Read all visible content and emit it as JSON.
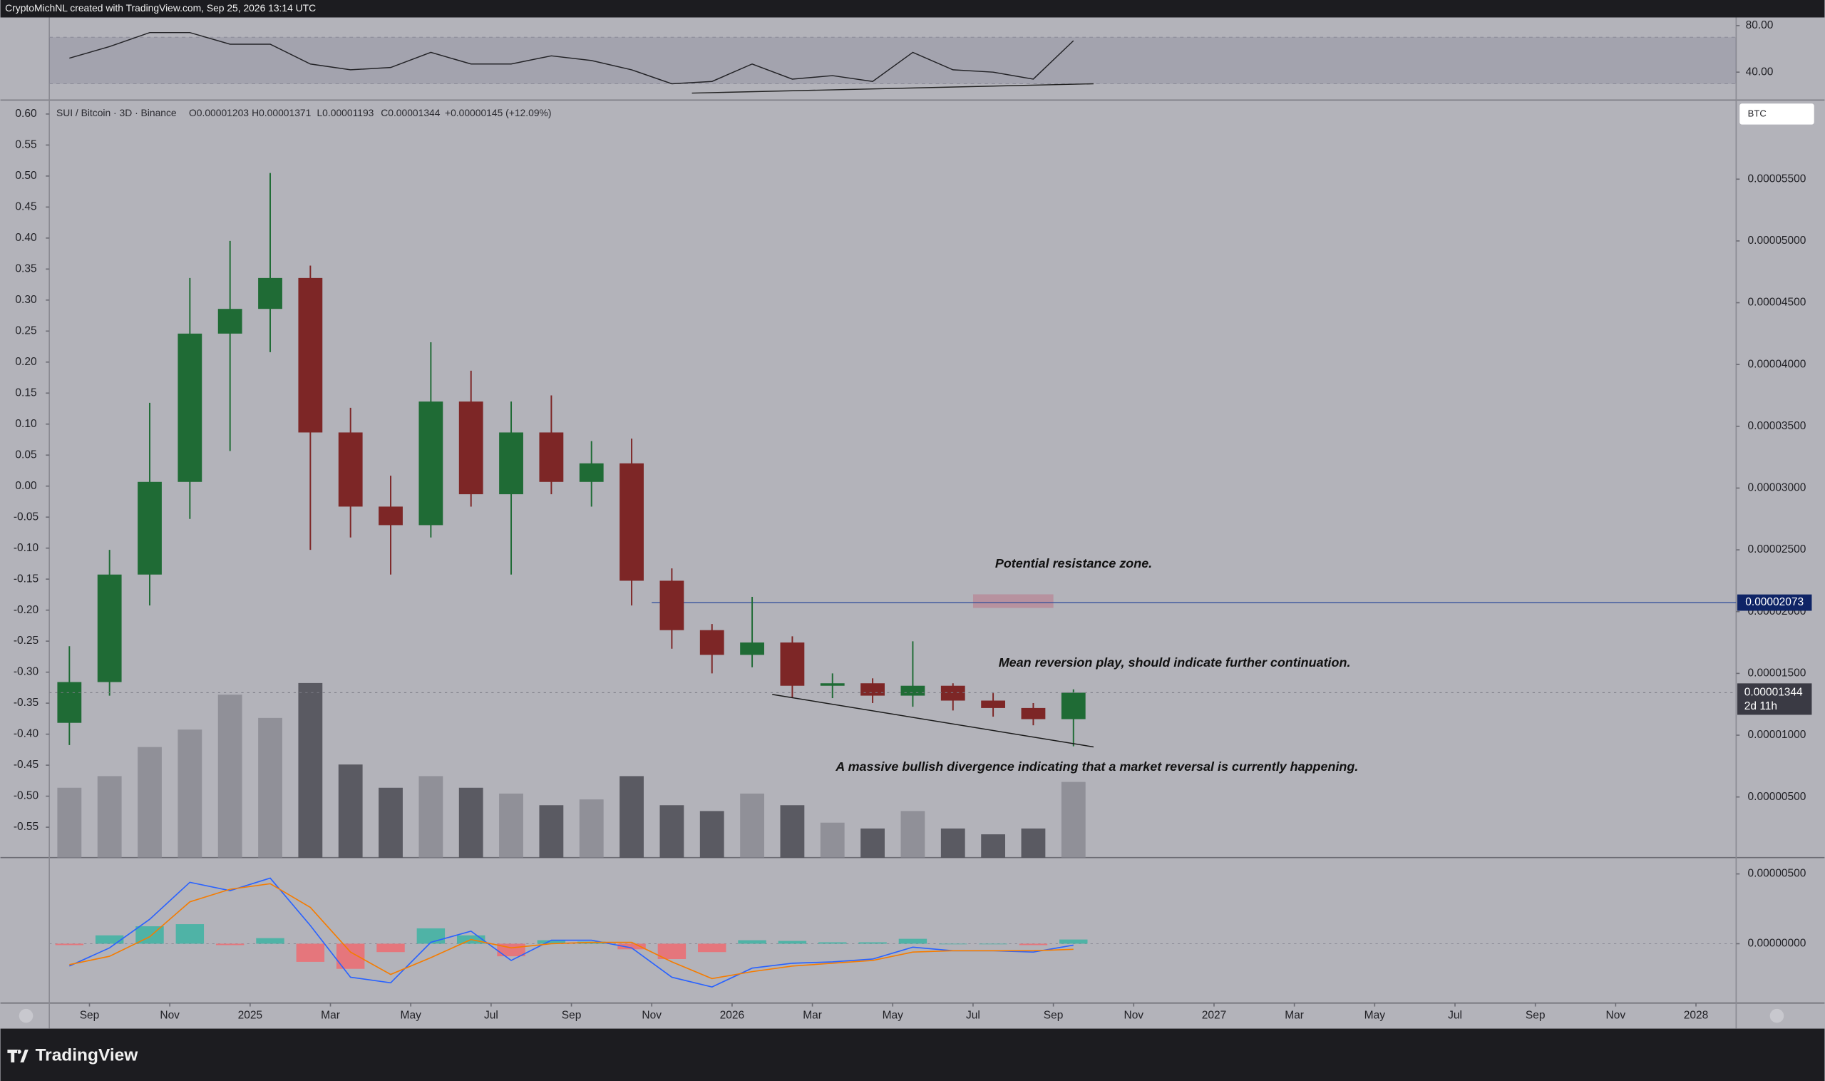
{
  "header": {
    "credit": "CryptoMichNL created with TradingView.com, Sep 25, 2026 13:14 UTC"
  },
  "chart_data": [
    {
      "type": "candlestick",
      "legend": {
        "symbol": "SUI / Bitcoin · 3D · Binance",
        "open": "O0.00001203",
        "high": "H0.00001371",
        "low": "L0.00001193",
        "close": "C0.00001344",
        "change": "+0.00000145 (+12.09%)"
      },
      "currency": "BTC",
      "x": [
        "2024-08",
        "2024-09",
        "2024-10",
        "2024-11",
        "2024-12",
        "2025-01",
        "2025-02",
        "2025-03",
        "2025-04",
        "2025-05",
        "2025-06",
        "2025-07",
        "2025-08",
        "2025-09",
        "2025-10",
        "2025-11",
        "2025-12",
        "2026-01",
        "2026-02",
        "2026-03",
        "2026-04",
        "2026-05",
        "2026-06",
        "2026-07",
        "2026-08",
        "2026-09"
      ],
      "open": [
        1.1e-05,
        1.43e-05,
        2.3e-05,
        3.05e-05,
        4.25e-05,
        4.45e-05,
        4.7e-05,
        3.45e-05,
        2.85e-05,
        2.7e-05,
        3.7e-05,
        2.95e-05,
        3.45e-05,
        3.05e-05,
        3.2e-05,
        2.25e-05,
        1.85e-05,
        1.65e-05,
        1.75e-05,
        1.4e-05,
        1.42e-05,
        1.32e-05,
        1.4e-05,
        1.28e-05,
        1.22e-05,
        1.13e-05
      ],
      "high": [
        1.72e-05,
        2.5e-05,
        3.69e-05,
        4.7e-05,
        5e-05,
        5.55e-05,
        4.8e-05,
        3.65e-05,
        3.1e-05,
        4.18e-05,
        3.95e-05,
        3.7e-05,
        3.75e-05,
        3.38e-05,
        3.4e-05,
        2.35e-05,
        1.9e-05,
        2.12e-05,
        1.8e-05,
        1.5e-05,
        1.46e-05,
        1.76e-05,
        1.42e-05,
        1.34e-05,
        1.26e-05,
        1.371e-05
      ],
      "low": [
        9.2e-06,
        1.32e-05,
        2.05e-05,
        2.75e-05,
        3.3e-05,
        4.1e-05,
        2.5e-05,
        2.6e-05,
        2.3e-05,
        2.6e-05,
        2.85e-05,
        2.3e-05,
        2.95e-05,
        2.85e-05,
        2.05e-05,
        1.7e-05,
        1.5e-05,
        1.55e-05,
        1.3e-05,
        1.3e-05,
        1.26e-05,
        1.23e-05,
        1.2e-05,
        1.15e-05,
        1.08e-05,
        9.1e-06
      ],
      "close": [
        1.43e-05,
        2.3e-05,
        3.05e-05,
        4.25e-05,
        4.45e-05,
        4.7e-05,
        3.45e-05,
        2.85e-05,
        2.7e-05,
        3.7e-05,
        2.95e-05,
        3.45e-05,
        3.05e-05,
        3.2e-05,
        2.25e-05,
        1.85e-05,
        1.65e-05,
        1.75e-05,
        1.4e-05,
        1.42e-05,
        1.32e-05,
        1.4e-05,
        1.28e-05,
        1.22e-05,
        1.13e-05,
        1.344e-05
      ],
      "up_color": "#1f6b35",
      "down_color": "#7d2626",
      "volume": [
        60,
        70,
        95,
        110,
        140,
        120,
        150,
        80,
        60,
        70,
        60,
        55,
        45,
        50,
        70,
        45,
        40,
        55,
        45,
        30,
        25,
        40,
        25,
        20,
        25,
        65
      ],
      "volume_colors": [
        "#8a8a92",
        "#4a4a52"
      ],
      "ylim": [
        9.4e-08,
        6.14e-05
      ],
      "yticks": [
        {
          "value": 5.5e-05,
          "label": "0.00005500"
        },
        {
          "value": 5e-05,
          "label": "0.00005000"
        },
        {
          "value": 4.5e-05,
          "label": "0.00004500"
        },
        {
          "value": 4e-05,
          "label": "0.00004000"
        },
        {
          "value": 3.5e-05,
          "label": "0.00003500"
        },
        {
          "value": 3e-05,
          "label": "0.00003000"
        },
        {
          "value": 2.5e-05,
          "label": "0.00002500"
        },
        {
          "value": 2e-05,
          "label": "0.00002000"
        },
        {
          "value": 1.5e-05,
          "label": "0.00001500"
        },
        {
          "value": 1e-05,
          "label": "0.00001000"
        },
        {
          "value": 5e-06,
          "label": "0.00000500"
        }
      ],
      "y_left_lim": [
        -0.599,
        0.6225
      ],
      "y_left_ticks": [
        {
          "value": 0.6,
          "label": "0.60"
        },
        {
          "value": 0.55,
          "label": "0.55"
        },
        {
          "value": 0.5,
          "label": "0.50"
        },
        {
          "value": 0.45,
          "label": "0.45"
        },
        {
          "value": 0.4,
          "label": "0.40"
        },
        {
          "value": 0.35,
          "label": "0.35"
        },
        {
          "value": 0.3,
          "label": "0.30"
        },
        {
          "value": 0.25,
          "label": "0.25"
        },
        {
          "value": 0.2,
          "label": "0.20"
        },
        {
          "value": 0.15,
          "label": "0.15"
        },
        {
          "value": 0.1,
          "label": "0.10"
        },
        {
          "value": 0.05,
          "label": "0.05"
        },
        {
          "value": 0,
          "label": "0.00"
        },
        {
          "value": -0.05,
          "label": "-0.05"
        },
        {
          "value": -0.1,
          "label": "-0.10"
        },
        {
          "value": -0.15,
          "label": "-0.15"
        },
        {
          "value": -0.2,
          "label": "-0.20"
        },
        {
          "value": -0.25,
          "label": "-0.25"
        },
        {
          "value": -0.3,
          "label": "-0.30"
        },
        {
          "value": -0.35,
          "label": "-0.35"
        },
        {
          "value": -0.4,
          "label": "-0.40"
        },
        {
          "value": -0.45,
          "label": "-0.45"
        },
        {
          "value": -0.5,
          "label": "-0.50"
        },
        {
          "value": -0.55,
          "label": "-0.55"
        }
      ],
      "xlim": [
        "2024-08",
        "2028-02"
      ],
      "xticks": [
        {
          "value": "2024-09",
          "label": "Sep"
        },
        {
          "value": "2024-11",
          "label": "Nov"
        },
        {
          "value": "2025-01",
          "label": "2025"
        },
        {
          "value": "2025-03",
          "label": "Mar"
        },
        {
          "value": "2025-05",
          "label": "May"
        },
        {
          "value": "2025-07",
          "label": "Jul"
        },
        {
          "value": "2025-09",
          "label": "Sep"
        },
        {
          "value": "2025-11",
          "label": "Nov"
        },
        {
          "value": "2026-01",
          "label": "2026"
        },
        {
          "value": "2026-03",
          "label": "Mar"
        },
        {
          "value": "2026-05",
          "label": "May"
        },
        {
          "value": "2026-07",
          "label": "Jul"
        },
        {
          "value": "2026-09",
          "label": "Sep"
        },
        {
          "value": "2026-11",
          "label": "Nov"
        },
        {
          "value": "2027-01",
          "label": "2027"
        },
        {
          "value": "2027-03",
          "label": "Mar"
        },
        {
          "value": "2027-05",
          "label": "May"
        },
        {
          "value": "2027-07",
          "label": "Jul"
        },
        {
          "value": "2027-09",
          "label": "Sep"
        },
        {
          "value": "2027-11",
          "label": "Nov"
        },
        {
          "value": "2028-01",
          "label": "2028"
        }
      ],
      "hline": {
        "value": 2.073e-05,
        "label": "0.00002073",
        "from": "2025-11",
        "color": "#2b4a9a"
      },
      "zone": {
        "from": "2026-07",
        "to": "2026-09",
        "low": 2.03e-05,
        "high": 2.14e-05,
        "color": "#b88a98"
      },
      "trendline": {
        "x": [
          "2026-02",
          "2026-10"
        ],
        "y": [
          1.33e-05,
          9.05e-06
        ]
      },
      "last_price_label": "0.00001344",
      "countdown": "2d 11h",
      "annotations": [
        "Potential resistance zone.",
        "Mean reversion play, should indicate further continuation.",
        "A massive bullish divergence indicating that a market reversal is currently happening."
      ]
    },
    {
      "type": "line",
      "x": [
        "2024-08",
        "2024-09",
        "2024-10",
        "2024-11",
        "2024-12",
        "2025-01",
        "2025-02",
        "2025-03",
        "2025-04",
        "2025-05",
        "2025-06",
        "2025-07",
        "2025-08",
        "2025-09",
        "2025-10",
        "2025-11",
        "2025-12",
        "2026-01",
        "2026-02",
        "2026-03",
        "2026-04",
        "2026-05",
        "2026-06",
        "2026-07",
        "2026-08",
        "2026-09"
      ],
      "values": [
        52,
        62,
        74,
        74,
        64,
        64,
        47,
        42,
        44,
        57,
        47,
        47,
        54,
        50,
        42,
        30,
        32,
        47,
        34,
        37,
        32,
        57,
        42,
        40,
        34,
        67
      ],
      "color": "#222226",
      "ylim": [
        16,
        87
      ],
      "yticks": [
        {
          "value": 80,
          "label": "80.00"
        },
        {
          "value": 40,
          "label": "40.00"
        }
      ],
      "band": [
        30,
        70
      ],
      "trendline": {
        "x": [
          "2025-12",
          "2026-10"
        ],
        "y": [
          22,
          30
        ]
      }
    },
    {
      "type": "macd",
      "x": [
        "2024-08",
        "2024-09",
        "2024-10",
        "2024-11",
        "2024-12",
        "2025-01",
        "2025-02",
        "2025-03",
        "2025-04",
        "2025-05",
        "2025-06",
        "2025-07",
        "2025-08",
        "2025-09",
        "2025-10",
        "2025-11",
        "2025-12",
        "2026-01",
        "2026-02",
        "2026-03",
        "2026-04",
        "2026-05",
        "2026-06",
        "2026-07",
        "2026-08",
        "2026-09"
      ],
      "series": [
        {
          "color": "#2962ff",
          "values": [
            -1.6e-06,
            -3e-07,
            1.75e-06,
            4.4e-06,
            3.8e-06,
            4.7e-06,
            1.3e-06,
            -2.4e-06,
            -2.8e-06,
            1e-07,
            9e-07,
            -1.2e-06,
            2.5e-07,
            2.5e-07,
            -3e-07,
            -2.4e-06,
            -3.1e-06,
            -1.75e-06,
            -1.4e-06,
            -1.3e-06,
            -1.1e-06,
            -2.5e-07,
            -5e-07,
            -5e-07,
            -6e-07,
            -1e-07
          ]
        },
        {
          "color": "#f57c00",
          "values": [
            -1.5e-06,
            -9e-07,
            5e-07,
            3e-06,
            3.9e-06,
            4.3e-06,
            2.6e-06,
            -6e-07,
            -2.2e-06,
            -1e-06,
            3e-07,
            -3e-07,
            0,
            1e-07,
            1e-07,
            -1.3e-06,
            -2.5e-06,
            -2e-06,
            -1.6e-06,
            -1.4e-06,
            -1.2e-06,
            -6e-07,
            -5e-07,
            -5e-07,
            -5e-07,
            -4e-07
          ]
        }
      ],
      "histogram": {
        "values": [
          -1e-07,
          6e-07,
          1.25e-06,
          1.4e-06,
          -1e-07,
          4e-07,
          -1.3e-06,
          -1.8e-06,
          -6e-07,
          1.1e-06,
          6e-07,
          -9e-07,
          2.5e-07,
          1.5e-07,
          -4e-07,
          -1.1e-06,
          -6e-07,
          2.5e-07,
          2e-07,
          1e-07,
          1e-07,
          3.5e-07,
          0,
          0,
          -1e-07,
          3e-07
        ],
        "colors": [
          "#4fb3a6",
          "#e5767c"
        ]
      },
      "ylim": [
        -4.25e-06,
        6.17e-06
      ],
      "yticks": [
        {
          "value": 5e-06,
          "label": "0.00000500"
        },
        {
          "value": 0,
          "label": "0.00000000"
        }
      ]
    }
  ],
  "footer": {
    "brand": "TradingView"
  }
}
